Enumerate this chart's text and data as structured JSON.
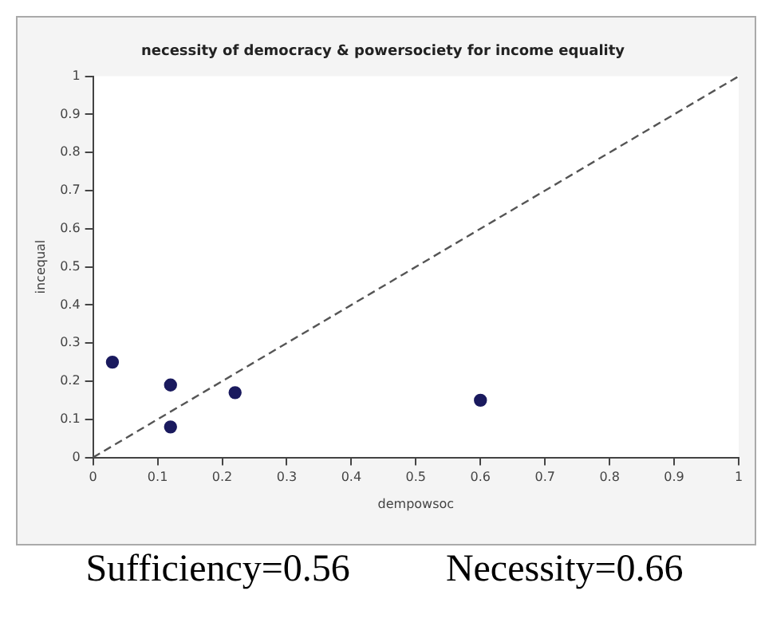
{
  "chart_data": {
    "type": "scatter",
    "title": "necessity of democracy & powersociety for income equality",
    "xlabel": "dempowsoc",
    "ylabel": "incequal",
    "x": [
      0.03,
      0.12,
      0.12,
      0.22,
      0.6
    ],
    "series": [
      {
        "color": "#1a1a5e",
        "values": [
          0.25,
          0.19,
          0.08,
          0.17,
          0.15
        ],
        "marker": "circle"
      },
      {
        "type": "line",
        "color": "#555555",
        "x": [
          0,
          1
        ],
        "values": [
          0,
          1
        ],
        "line_style": "dashed",
        "marker": "none"
      }
    ],
    "xlim": [
      0,
      1
    ],
    "xticks": [
      0,
      0.1,
      0.2,
      0.3,
      0.4,
      0.5,
      0.6,
      0.7,
      0.8,
      0.9,
      1
    ],
    "ylim": [
      0,
      1
    ],
    "yticks": [
      0,
      0.1,
      0.2,
      0.3,
      0.4,
      0.5,
      0.6,
      0.7,
      0.8,
      0.9,
      1
    ],
    "grid": false,
    "legend": false,
    "annotations": [
      "Sufficiency=0.56",
      "Necessity=0.66"
    ]
  }
}
